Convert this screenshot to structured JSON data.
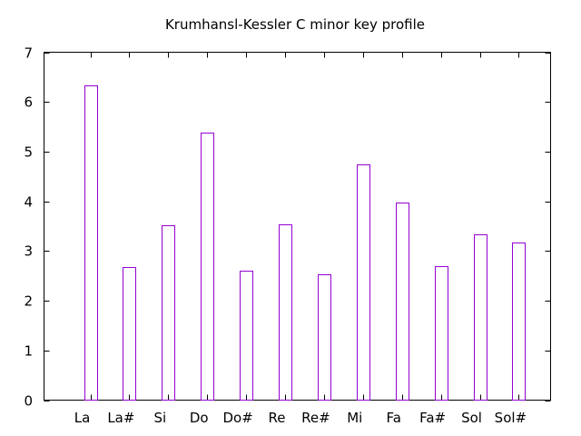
{
  "chart_data": {
    "type": "bar",
    "title": "Krumhansl-Kessler C minor key profile",
    "xlabel": "",
    "ylabel": "",
    "categories": [
      "La",
      "La#",
      "Si",
      "Do",
      "Do#",
      "Re",
      "Re#",
      "Mi",
      "Fa",
      "Fa#",
      "Sol",
      "Sol#"
    ],
    "values": [
      6.33,
      2.68,
      3.52,
      5.38,
      2.6,
      3.53,
      2.54,
      4.75,
      3.98,
      2.69,
      3.34,
      3.17
    ],
    "ylim": [
      0,
      7
    ],
    "yticks": [
      "0",
      "1",
      "2",
      "3",
      "4",
      "5",
      "6",
      "7"
    ],
    "grid": false,
    "bar_style": "outline",
    "bar_color": "#9400d3"
  }
}
